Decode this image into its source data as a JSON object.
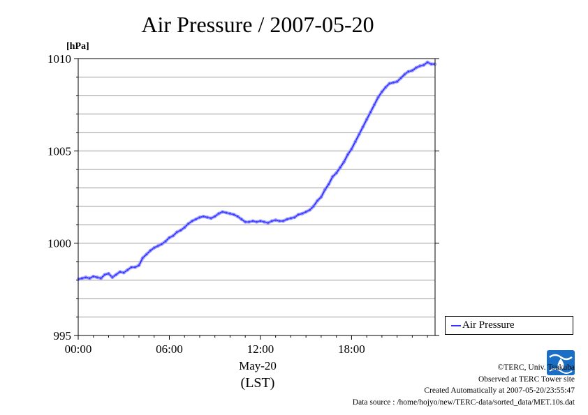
{
  "chart_data": {
    "type": "line",
    "title": "Air Pressure / 2007-05-20",
    "unit_label": "[hPa]",
    "xlabel_date": "May-20",
    "xlabel_tz": "(LST)",
    "xlim": [
      0,
      23.5
    ],
    "ylim": [
      995,
      1010
    ],
    "x_ticks": [
      0,
      6,
      12,
      18
    ],
    "x_tick_labels": [
      "00:00",
      "06:00",
      "12:00",
      "18:00"
    ],
    "y_ticks": [
      995,
      1000,
      1005,
      1010
    ],
    "y_tick_labels": [
      "995",
      "1000",
      "1005",
      "1010"
    ],
    "y_grid_step": 1,
    "grid": true,
    "legend_position": "right",
    "series": [
      {
        "name": "Air Pressure",
        "color": "#3333ff",
        "x": [
          0,
          0.25,
          0.5,
          0.75,
          1.0,
          1.25,
          1.5,
          1.75,
          2.0,
          2.25,
          2.5,
          2.75,
          3.0,
          3.25,
          3.5,
          3.75,
          4.0,
          4.25,
          4.5,
          4.75,
          5.0,
          5.25,
          5.5,
          5.75,
          6.0,
          6.25,
          6.5,
          6.75,
          7.0,
          7.25,
          7.5,
          7.75,
          8.0,
          8.25,
          8.5,
          8.75,
          9.0,
          9.25,
          9.5,
          9.75,
          10.0,
          10.25,
          10.5,
          10.75,
          11.0,
          11.25,
          11.5,
          11.75,
          12.0,
          12.25,
          12.5,
          12.75,
          13.0,
          13.25,
          13.5,
          13.75,
          14.0,
          14.25,
          14.5,
          14.75,
          15.0,
          15.25,
          15.5,
          15.75,
          16.0,
          16.25,
          16.5,
          16.75,
          17.0,
          17.25,
          17.5,
          17.75,
          18.0,
          18.25,
          18.5,
          18.75,
          19.0,
          19.25,
          19.5,
          19.75,
          20.0,
          20.25,
          20.5,
          20.75,
          21.0,
          21.25,
          21.5,
          21.75,
          22.0,
          22.25,
          22.5,
          22.75,
          23.0,
          23.25,
          23.5
        ],
        "values": [
          998.05,
          998.1,
          998.15,
          998.1,
          998.2,
          998.15,
          998.1,
          998.3,
          998.35,
          998.15,
          998.3,
          998.45,
          998.4,
          998.55,
          998.7,
          998.7,
          998.8,
          999.2,
          999.4,
          999.6,
          999.75,
          999.85,
          999.95,
          1000.1,
          1000.3,
          1000.4,
          1000.6,
          1000.7,
          1000.85,
          1001.05,
          1001.2,
          1001.3,
          1001.4,
          1001.45,
          1001.4,
          1001.35,
          1001.45,
          1001.6,
          1001.7,
          1001.65,
          1001.6,
          1001.55,
          1001.45,
          1001.3,
          1001.15,
          1001.15,
          1001.2,
          1001.15,
          1001.2,
          1001.15,
          1001.1,
          1001.2,
          1001.25,
          1001.2,
          1001.2,
          1001.3,
          1001.35,
          1001.4,
          1001.55,
          1001.6,
          1001.7,
          1001.8,
          1002.0,
          1002.3,
          1002.5,
          1002.9,
          1003.2,
          1003.6,
          1003.8,
          1004.1,
          1004.4,
          1004.8,
          1005.1,
          1005.5,
          1005.9,
          1006.3,
          1006.7,
          1007.1,
          1007.5,
          1007.9,
          1008.2,
          1008.45,
          1008.65,
          1008.7,
          1008.75,
          1008.95,
          1009.15,
          1009.3,
          1009.35,
          1009.5,
          1009.6,
          1009.65,
          1009.8,
          1009.7,
          1009.7
        ]
      }
    ]
  },
  "legend": {
    "label": "Air Pressure"
  },
  "credits": {
    "line1": "©TERC, Univ. Tsukuba",
    "line2": "Observed at TERC Tower site",
    "line3": "Created Automatically at 2007-05-20/23:55:47",
    "line4": "Data source : /home/hojyo/new/TERC-data/sorted_data/MET.10s.dat"
  },
  "logo": {
    "name": "TERC",
    "color": "#1a6fc4"
  }
}
